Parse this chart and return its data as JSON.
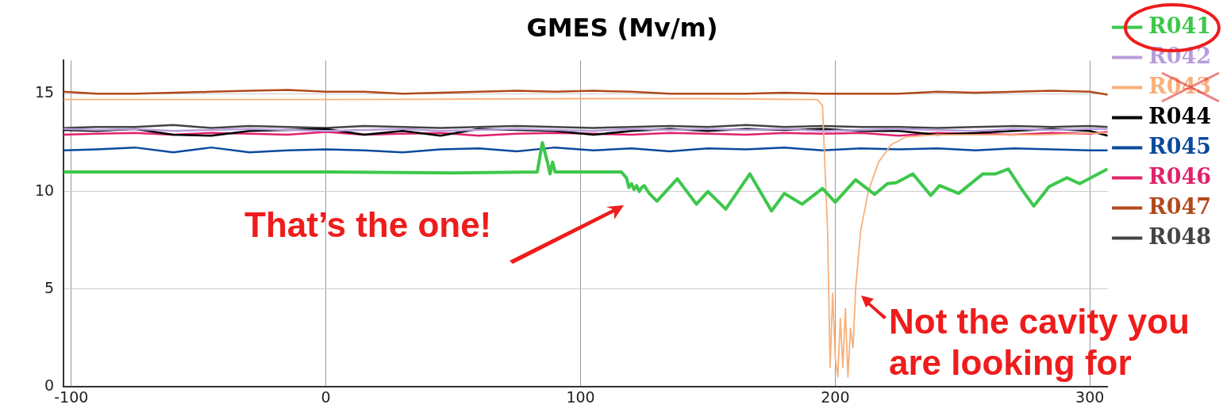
{
  "chart_data": {
    "type": "line",
    "title": "GMES (Mv/m)",
    "x": [
      -103,
      -90,
      -75,
      -60,
      -45,
      -30,
      -15,
      0,
      15,
      30,
      45,
      60,
      75,
      90,
      105,
      120,
      135,
      150,
      165,
      180,
      195,
      210,
      225,
      240,
      255,
      270,
      285,
      300,
      307
    ],
    "series": [
      {
        "name": "R041",
        "color": "#3dc74b",
        "x": [
          -103,
          -60,
          0,
          50,
          83,
          85,
          87,
          88,
          89,
          90,
          116,
          118,
          119,
          120,
          121,
          122,
          123,
          124,
          125,
          127,
          130,
          138,
          145.5,
          150,
          157,
          166.5,
          175,
          180,
          187,
          195,
          200,
          208,
          215.5,
          220.5,
          224,
          230.5,
          237.5,
          241,
          248.5,
          258,
          263,
          268,
          273,
          278,
          284,
          291,
          296,
          307
        ],
        "values": [
          11.0,
          11.0,
          11.0,
          10.95,
          11.0,
          12.5,
          11.5,
          10.9,
          11.5,
          11.0,
          11.0,
          10.7,
          10.2,
          10.4,
          10.1,
          10.3,
          10.0,
          10.2,
          10.3,
          9.9,
          9.5,
          10.65,
          9.35,
          10.0,
          9.1,
          10.9,
          9.0,
          9.9,
          9.35,
          10.15,
          9.45,
          10.6,
          9.85,
          10.4,
          10.45,
          10.9,
          9.8,
          10.3,
          9.9,
          10.9,
          10.9,
          11.15,
          10.15,
          9.25,
          10.25,
          10.7,
          10.4,
          11.15
        ]
      },
      {
        "name": "R042",
        "color": "#b79ddb",
        "values": [
          13.2,
          13.15,
          13.2,
          13.1,
          13.15,
          13.2,
          13.15,
          13.1,
          13.15,
          13.2,
          13.1,
          13.15,
          13.2,
          13.15,
          13.1,
          13.2,
          13.15,
          13.2,
          13.15,
          13.2,
          13.1,
          13.15,
          13.2,
          13.15,
          13.1,
          13.2,
          13.15,
          13.2,
          13.2
        ]
      },
      {
        "name": "R043",
        "color": "#f9b07a",
        "x": [
          -103,
          0,
          100,
          150,
          193,
          195,
          197,
          198,
          199,
          200,
          201,
          202,
          203,
          204,
          205,
          206,
          207,
          208,
          210,
          213,
          217,
          222,
          228,
          240,
          260,
          280,
          307
        ],
        "values": [
          14.7,
          14.7,
          14.75,
          14.75,
          14.7,
          14.4,
          8,
          1.0,
          4.8,
          1.5,
          0.5,
          3.5,
          1.0,
          4.0,
          0.5,
          3.0,
          2.0,
          5.0,
          8,
          10,
          11.5,
          12.4,
          12.8,
          12.9,
          12.9,
          12.9,
          13.0
        ]
      },
      {
        "name": "R044",
        "color": "#000000",
        "values": [
          13.15,
          13.1,
          13.2,
          12.9,
          12.85,
          13.1,
          13.15,
          13.2,
          12.9,
          13.1,
          12.85,
          13.2,
          13.15,
          13.1,
          12.9,
          13.1,
          13.2,
          13.1,
          13.2,
          13.15,
          13.2,
          13.1,
          13.1,
          12.9,
          13.0,
          13.1,
          13.2,
          13.1,
          12.85
        ]
      },
      {
        "name": "R045",
        "color": "#0b4a9e",
        "values": [
          12.1,
          12.15,
          12.25,
          12.0,
          12.25,
          12.0,
          12.1,
          12.15,
          12.1,
          12.0,
          12.15,
          12.2,
          12.05,
          12.25,
          12.1,
          12.2,
          12.05,
          12.2,
          12.15,
          12.25,
          12.1,
          12.2,
          12.15,
          12.2,
          12.1,
          12.2,
          12.15,
          12.1,
          12.1
        ]
      },
      {
        "name": "R046",
        "color": "#e0226c",
        "values": [
          12.9,
          12.95,
          13.0,
          12.9,
          13.0,
          12.95,
          12.9,
          13.05,
          12.9,
          12.95,
          13.0,
          12.85,
          12.95,
          13.0,
          12.95,
          12.9,
          13.0,
          12.95,
          12.9,
          13.0,
          12.95,
          13.0,
          12.85,
          13.0,
          12.95,
          12.9,
          13.0,
          12.95,
          13.05
        ]
      },
      {
        "name": "R047",
        "color": "#b2491c",
        "values": [
          15.1,
          15.0,
          15.0,
          15.05,
          15.1,
          15.15,
          15.2,
          15.1,
          15.1,
          15.0,
          15.05,
          15.1,
          15.15,
          15.1,
          15.15,
          15.1,
          15.0,
          15.0,
          15.0,
          15.05,
          15.0,
          15.0,
          15.0,
          15.1,
          15.05,
          15.1,
          15.15,
          15.1,
          14.95
        ]
      },
      {
        "name": "R048",
        "color": "#444444",
        "values": [
          13.25,
          13.3,
          13.3,
          13.4,
          13.25,
          13.35,
          13.3,
          13.25,
          13.35,
          13.3,
          13.25,
          13.3,
          13.35,
          13.3,
          13.25,
          13.3,
          13.35,
          13.3,
          13.4,
          13.3,
          13.35,
          13.3,
          13.3,
          13.25,
          13.3,
          13.35,
          13.3,
          13.35,
          13.3
        ]
      }
    ],
    "xlim": [
      -103,
      307
    ],
    "ylim": [
      0,
      16.7
    ],
    "xticks": [
      -100,
      0,
      100,
      200,
      300
    ],
    "yticks": [
      0,
      5,
      10,
      15
    ],
    "grid": true,
    "legend": "top right",
    "annotations": [
      "That’s the one!",
      "Not the cavity you are looking for"
    ]
  }
}
